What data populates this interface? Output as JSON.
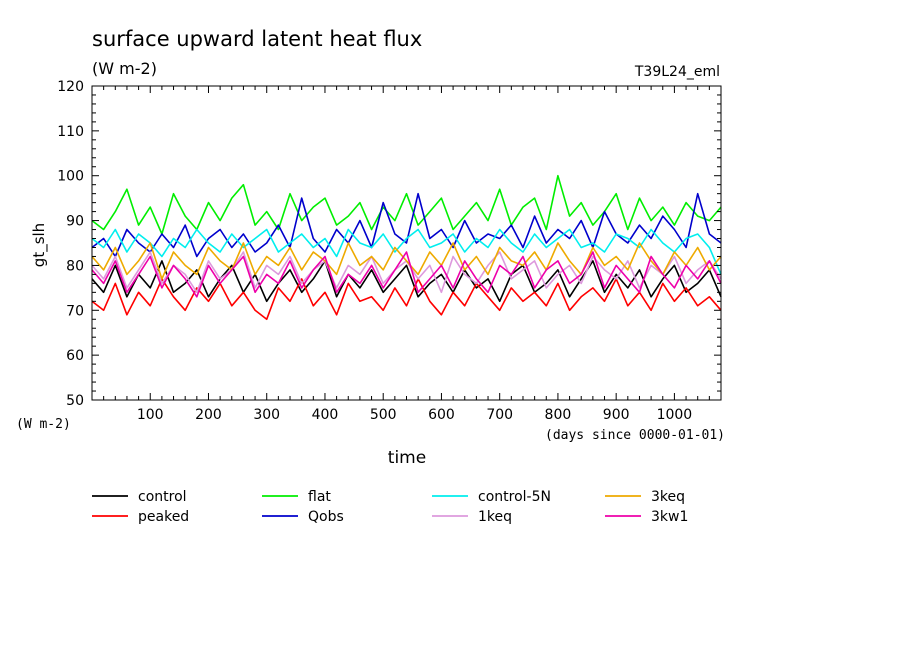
{
  "title": "surface upward latent heat flux",
  "units": "(W m-2)",
  "run_id": "T39L24_eml",
  "chart_data": {
    "type": "line",
    "title": "surface upward latent heat flux",
    "subtitle": "(W m-2)",
    "ylabel": "gt_slh",
    "ylabel_units": "(W m-2)",
    "xlabel": "time",
    "xlabel_units": "(days since 0000-01-01)",
    "xlim": [
      0,
      1080
    ],
    "ylim": [
      50,
      120
    ],
    "x_ticks": [
      100,
      200,
      300,
      400,
      500,
      600,
      700,
      800,
      900,
      1000
    ],
    "x_tick_labels": [
      "100",
      "200",
      "300",
      "400",
      "500",
      "600",
      "700",
      "800",
      "900",
      "1000"
    ],
    "y_ticks": [
      50,
      60,
      70,
      80,
      90,
      100,
      110,
      120
    ],
    "y_tick_labels": [
      "50",
      "60",
      "70",
      "80",
      "90",
      "100",
      "110",
      "120"
    ],
    "grid": false,
    "legend_position": "bottom",
    "x": [
      0,
      20,
      40,
      60,
      80,
      100,
      120,
      140,
      160,
      180,
      200,
      220,
      240,
      260,
      280,
      300,
      320,
      340,
      360,
      380,
      400,
      420,
      440,
      460,
      480,
      500,
      520,
      540,
      560,
      580,
      600,
      620,
      640,
      660,
      680,
      700,
      720,
      740,
      760,
      780,
      800,
      820,
      840,
      860,
      880,
      900,
      920,
      940,
      960,
      980,
      1000,
      1020,
      1040,
      1060,
      1080
    ],
    "series": [
      {
        "name": "control",
        "color": "#000000",
        "values": [
          77,
          74,
          80,
          73,
          78,
          75,
          81,
          74,
          76,
          79,
          73,
          77,
          80,
          74,
          78,
          72,
          76,
          79,
          74,
          77,
          81,
          73,
          78,
          75,
          79,
          74,
          77,
          80,
          73,
          76,
          78,
          74,
          79,
          75,
          77,
          72,
          78,
          80,
          74,
          76,
          79,
          73,
          77,
          81,
          74,
          78,
          75,
          79,
          73,
          77,
          80,
          74,
          76,
          79,
          73
        ]
      },
      {
        "name": "peaked",
        "color": "#ff0000",
        "values": [
          72,
          70,
          76,
          69,
          74,
          71,
          77,
          73,
          70,
          75,
          72,
          76,
          71,
          74,
          70,
          68,
          75,
          72,
          77,
          71,
          74,
          69,
          76,
          72,
          73,
          70,
          75,
          71,
          77,
          72,
          69,
          74,
          71,
          76,
          73,
          70,
          75,
          72,
          74,
          71,
          76,
          70,
          73,
          75,
          72,
          77,
          71,
          74,
          70,
          76,
          72,
          75,
          71,
          73,
          70
        ]
      },
      {
        "name": "flat",
        "color": "#00ee00",
        "values": [
          90,
          88,
          92,
          97,
          89,
          93,
          87,
          96,
          91,
          88,
          94,
          90,
          95,
          98,
          89,
          92,
          88,
          96,
          90,
          93,
          95,
          89,
          91,
          94,
          88,
          93,
          90,
          96,
          89,
          92,
          95,
          88,
          91,
          94,
          90,
          97,
          89,
          93,
          95,
          88,
          100,
          91,
          94,
          89,
          92,
          96,
          88,
          95,
          90,
          93,
          89,
          94,
          91,
          90,
          93
        ]
      },
      {
        "name": "Qobs",
        "color": "#0000cc",
        "values": [
          84,
          86,
          82,
          88,
          85,
          83,
          87,
          84,
          89,
          82,
          86,
          88,
          84,
          87,
          83,
          85,
          89,
          84,
          95,
          86,
          83,
          88,
          85,
          90,
          84,
          94,
          87,
          85,
          96,
          86,
          88,
          84,
          90,
          85,
          87,
          86,
          89,
          84,
          91,
          85,
          88,
          86,
          90,
          84,
          92,
          87,
          85,
          89,
          86,
          91,
          88,
          84,
          96,
          87,
          85
        ]
      },
      {
        "name": "control-5N",
        "color": "#00eeee",
        "values": [
          86,
          84,
          88,
          83,
          87,
          85,
          82,
          86,
          84,
          88,
          85,
          83,
          87,
          84,
          86,
          88,
          83,
          85,
          87,
          84,
          86,
          82,
          88,
          85,
          84,
          87,
          83,
          86,
          88,
          84,
          85,
          87,
          83,
          86,
          84,
          88,
          85,
          83,
          87,
          84,
          86,
          88,
          84,
          85,
          83,
          87,
          86,
          84,
          88,
          85,
          83,
          86,
          87,
          84,
          78
        ]
      },
      {
        "name": "1keq",
        "color": "#dd99dd",
        "values": [
          80,
          77,
          82,
          75,
          79,
          83,
          76,
          80,
          78,
          74,
          81,
          77,
          79,
          83,
          75,
          80,
          78,
          82,
          76,
          79,
          81,
          75,
          80,
          78,
          82,
          76,
          79,
          81,
          77,
          80,
          74,
          82,
          78,
          76,
          80,
          83,
          77,
          79,
          81,
          75,
          78,
          80,
          76,
          82,
          79,
          77,
          81,
          75,
          80,
          78,
          82,
          76,
          79,
          81,
          77
        ]
      },
      {
        "name": "3keq",
        "color": "#eeaa00",
        "values": [
          82,
          79,
          84,
          78,
          81,
          85,
          77,
          83,
          80,
          78,
          84,
          81,
          79,
          85,
          78,
          82,
          80,
          84,
          79,
          83,
          81,
          78,
          85,
          80,
          82,
          79,
          84,
          81,
          78,
          83,
          80,
          85,
          79,
          82,
          78,
          84,
          81,
          80,
          83,
          79,
          85,
          81,
          78,
          84,
          80,
          82,
          79,
          85,
          81,
          78,
          83,
          80,
          84,
          79,
          82
        ]
      },
      {
        "name": "3kw1",
        "color": "#ee00aa",
        "values": [
          79,
          76,
          81,
          74,
          78,
          82,
          75,
          80,
          77,
          73,
          80,
          76,
          79,
          82,
          74,
          78,
          76,
          81,
          75,
          79,
          82,
          74,
          78,
          76,
          80,
          75,
          79,
          83,
          74,
          77,
          80,
          75,
          81,
          77,
          74,
          80,
          78,
          82,
          75,
          79,
          81,
          76,
          78,
          83,
          75,
          80,
          77,
          74,
          82,
          78,
          75,
          80,
          77,
          81,
          76
        ]
      }
    ]
  }
}
